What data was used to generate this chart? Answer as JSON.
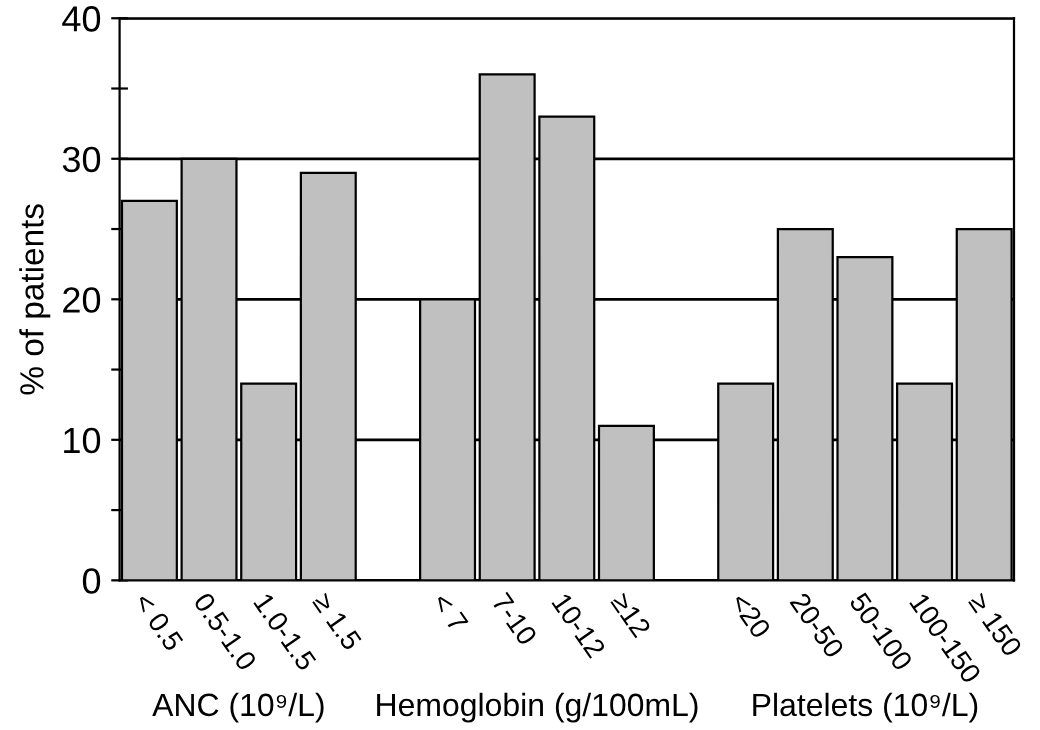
{
  "chart_data": {
    "type": "bar",
    "ylabel": "% of patients",
    "categories": [
      "< 0.5",
      "0.5-1.0",
      "1.0-1.5",
      "≥ 1.5",
      null,
      "< 7",
      "7-10",
      "10-12",
      "≥12",
      null,
      "<20",
      "20-50",
      "50-100",
      "100-150",
      "≥ 150"
    ],
    "series": [
      {
        "color": "#c0c0c0",
        "values": [
          27,
          30,
          14,
          29,
          null,
          20,
          36,
          33,
          11,
          null,
          14,
          25,
          23,
          14,
          25
        ]
      }
    ],
    "ylim": [
      0,
      40
    ],
    "yticks": [
      0,
      {
        "value": 5,
        "label": null
      },
      10,
      {
        "value": 15,
        "label": null
      },
      20,
      {
        "value": 25,
        "label": null
      },
      30,
      {
        "value": 35,
        "label": null
      },
      40
    ],
    "grid": "y",
    "legend": false,
    "annotations": [
      "ANC (10⁹/L)",
      "Hemoglobin (g/100mL)",
      "Platelets (10⁹/L)"
    ]
  }
}
